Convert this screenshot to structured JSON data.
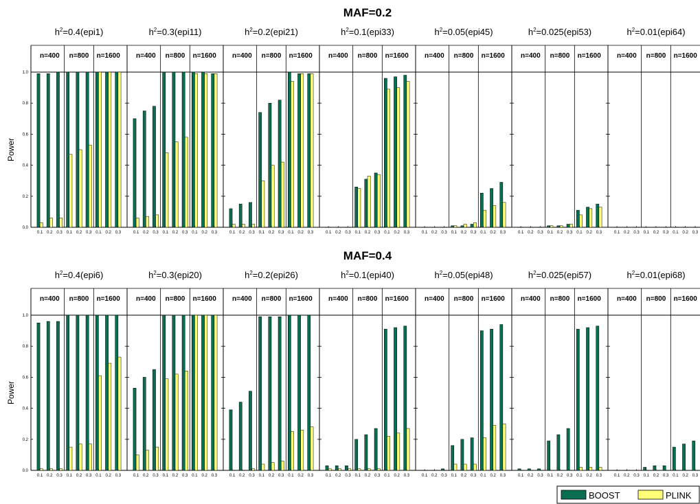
{
  "colors": {
    "boost": "#0a6e52",
    "plink": "#ffff77",
    "axis": "#000000"
  },
  "legend": [
    {
      "label": "BOOST",
      "color": "#0a6e52"
    },
    {
      "label": "PLINK",
      "color": "#ffff77"
    }
  ],
  "chart_data": {
    "type": "bar",
    "ylabel": "Power",
    "ylim": [
      0,
      1
    ],
    "yticks": [
      "0.0",
      "0.2",
      "0.4",
      "0.6",
      "0.8",
      "1.0"
    ],
    "group_labels": [
      "n=400",
      "n=800",
      "n=1600"
    ],
    "categories": [
      "0.1",
      "0.2",
      "0.3"
    ],
    "series_names": [
      "BOOST",
      "PLINK"
    ],
    "rows": [
      {
        "title": "MAF=0.2",
        "panels": [
          {
            "h2": "0.4",
            "epi": "(epi1)",
            "BOOST": [
              [
                0.99,
                0.99,
                1.0
              ],
              [
                1.0,
                1.0,
                1.0
              ],
              [
                1.0,
                1.0,
                1.0
              ]
            ],
            "PLINK": [
              [
                0.03,
                0.06,
                0.06
              ],
              [
                0.47,
                0.5,
                0.53
              ],
              [
                1.0,
                1.0,
                1.0
              ]
            ]
          },
          {
            "h2": "0.3",
            "epi": "(epi11)",
            "BOOST": [
              [
                0.7,
                0.75,
                0.78
              ],
              [
                1.0,
                1.0,
                1.0
              ],
              [
                1.0,
                1.0,
                0.99
              ]
            ],
            "PLINK": [
              [
                0.06,
                0.07,
                0.08
              ],
              [
                0.48,
                0.55,
                0.58
              ],
              [
                0.99,
                0.99,
                0.99
              ]
            ]
          },
          {
            "h2": "0.2",
            "epi": "(epi21)",
            "BOOST": [
              [
                0.12,
                0.15,
                0.16
              ],
              [
                0.74,
                0.8,
                0.82
              ],
              [
                1.0,
                0.99,
                0.99
              ]
            ],
            "PLINK": [
              [
                0.02,
                0.02,
                0.02
              ],
              [
                0.3,
                0.4,
                0.42
              ],
              [
                0.94,
                0.99,
                0.99
              ]
            ]
          },
          {
            "h2": "0.1",
            "epi": "(epi33)",
            "BOOST": [
              [
                0.0,
                0.0,
                0.0
              ],
              [
                0.26,
                0.31,
                0.35
              ],
              [
                0.96,
                0.97,
                0.98
              ]
            ],
            "PLINK": [
              [
                0.0,
                0.0,
                0.0
              ],
              [
                0.25,
                0.33,
                0.34
              ],
              [
                0.89,
                0.9,
                0.94
              ]
            ]
          },
          {
            "h2": "0.05",
            "epi": "(epi45)",
            "BOOST": [
              [
                0.0,
                0.0,
                0.0
              ],
              [
                0.01,
                0.01,
                0.02
              ],
              [
                0.22,
                0.25,
                0.29
              ]
            ],
            "PLINK": [
              [
                0.0,
                0.0,
                0.0
              ],
              [
                0.01,
                0.02,
                0.03
              ],
              [
                0.11,
                0.14,
                0.16
              ]
            ]
          },
          {
            "h2": "0.025",
            "epi": "(epi53)",
            "BOOST": [
              [
                0.0,
                0.0,
                0.0
              ],
              [
                0.01,
                0.01,
                0.02
              ],
              [
                0.11,
                0.13,
                0.15
              ]
            ],
            "PLINK": [
              [
                0.0,
                0.0,
                0.0
              ],
              [
                0.01,
                0.01,
                0.02
              ],
              [
                0.08,
                0.12,
                0.13
              ]
            ]
          },
          {
            "h2": "0.01",
            "epi": "(epi64)",
            "BOOST": [
              [
                0.0,
                0.0,
                0.0
              ],
              [
                0.0,
                0.0,
                0.0
              ],
              [
                0.0,
                0.0,
                0.0
              ]
            ],
            "PLINK": [
              [
                0.0,
                0.0,
                0.0
              ],
              [
                0.0,
                0.0,
                0.0
              ],
              [
                0.0,
                0.0,
                0.0
              ]
            ]
          }
        ]
      },
      {
        "title": "MAF=0.4",
        "panels": [
          {
            "h2": "0.4",
            "epi": "(epi6)",
            "BOOST": [
              [
                0.95,
                0.96,
                0.96
              ],
              [
                1.0,
                1.0,
                1.0
              ],
              [
                1.0,
                1.0,
                1.0
              ]
            ],
            "PLINK": [
              [
                0.01,
                0.01,
                0.01
              ],
              [
                0.15,
                0.17,
                0.17
              ],
              [
                0.61,
                0.69,
                0.73
              ]
            ]
          },
          {
            "h2": "0.3",
            "epi": "(epi20)",
            "BOOST": [
              [
                0.53,
                0.6,
                0.65
              ],
              [
                1.0,
                1.0,
                1.0
              ],
              [
                1.0,
                1.0,
                1.0
              ]
            ],
            "PLINK": [
              [
                0.1,
                0.13,
                0.15
              ],
              [
                0.59,
                0.62,
                0.64
              ],
              [
                1.0,
                1.0,
                1.0
              ]
            ]
          },
          {
            "h2": "0.2",
            "epi": "(epi26)",
            "BOOST": [
              [
                0.39,
                0.44,
                0.51
              ],
              [
                0.99,
                0.99,
                0.99
              ],
              [
                1.0,
                1.0,
                1.0
              ]
            ],
            "PLINK": [
              [
                0.0,
                0.0,
                0.01
              ],
              [
                0.04,
                0.05,
                0.06
              ],
              [
                0.25,
                0.26,
                0.28
              ]
            ]
          },
          {
            "h2": "0.1",
            "epi": "(epi40)",
            "BOOST": [
              [
                0.03,
                0.03,
                0.03
              ],
              [
                0.2,
                0.23,
                0.27
              ],
              [
                0.91,
                0.92,
                0.93
              ]
            ],
            "PLINK": [
              [
                0.01,
                0.01,
                0.01
              ],
              [
                0.01,
                0.01,
                0.01
              ],
              [
                0.22,
                0.24,
                0.27
              ]
            ]
          },
          {
            "h2": "0.05",
            "epi": "(epi48)",
            "BOOST": [
              [
                0.0,
                0.0,
                0.01
              ],
              [
                0.16,
                0.2,
                0.21
              ],
              [
                0.9,
                0.91,
                0.94
              ]
            ],
            "PLINK": [
              [
                0.0,
                0.0,
                0.0
              ],
              [
                0.04,
                0.04,
                0.04
              ],
              [
                0.21,
                0.29,
                0.3
              ]
            ]
          },
          {
            "h2": "0.025",
            "epi": "(epi57)",
            "BOOST": [
              [
                0.01,
                0.01,
                0.01
              ],
              [
                0.19,
                0.23,
                0.27
              ],
              [
                0.91,
                0.92,
                0.93
              ]
            ],
            "PLINK": [
              [
                0.0,
                0.0,
                0.0
              ],
              [
                0.0,
                0.0,
                0.0
              ],
              [
                0.02,
                0.02,
                0.02
              ]
            ]
          },
          {
            "h2": "0.01",
            "epi": "(epi68)",
            "BOOST": [
              [
                0.0,
                0.0,
                0.0
              ],
              [
                0.02,
                0.03,
                0.03
              ],
              [
                0.15,
                0.17,
                0.19
              ]
            ],
            "PLINK": [
              [
                0.0,
                0.0,
                0.0
              ],
              [
                0.0,
                0.0,
                0.0
              ],
              [
                0.0,
                0.0,
                0.0
              ]
            ]
          }
        ]
      }
    ]
  }
}
